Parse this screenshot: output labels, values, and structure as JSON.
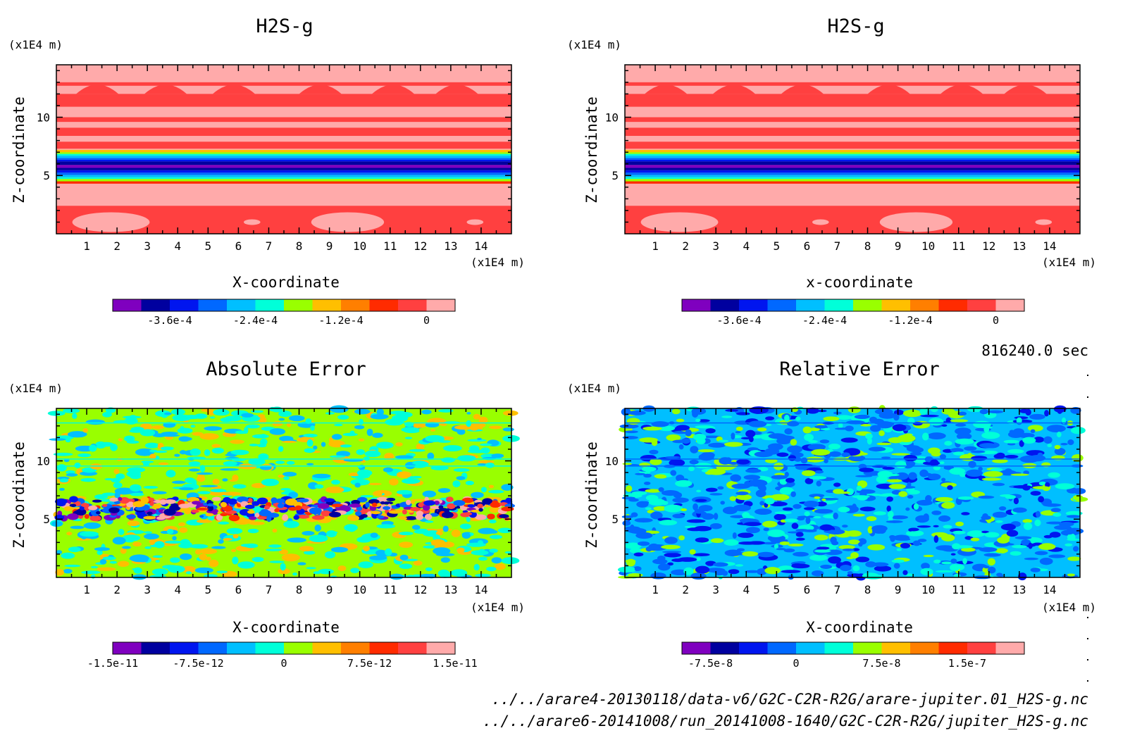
{
  "chart_data": [
    {
      "type": "heatmap",
      "title": "H2S-g",
      "xlabel": "X-coordinate",
      "ylabel": "Z-coordinate",
      "x_unit": "(x1E4 m)",
      "y_unit": "(x1E4 m)",
      "xlim": [
        0,
        15
      ],
      "ylim": [
        0,
        14.5
      ],
      "xticks": [
        "1",
        "2",
        "3",
        "4",
        "5",
        "6",
        "7",
        "8",
        "9",
        "10",
        "11",
        "12",
        "13",
        "14"
      ],
      "yticks": [
        "5",
        "10"
      ],
      "pattern": "stratified",
      "colorbar": {
        "colors": [
          "#7f00bf",
          "#00009f",
          "#0015ef",
          "#0068ff",
          "#00bfff",
          "#00ffd9",
          "#99ff00",
          "#ffbf00",
          "#ff7f00",
          "#ff2b00",
          "#ff4040",
          "#ffaaaa"
        ],
        "labels": [
          "-3.6e-4",
          "-2.4e-4",
          "-1.2e-4",
          "0"
        ],
        "range": [
          -0.00044,
          4e-05
        ]
      }
    },
    {
      "type": "heatmap",
      "title": "H2S-g",
      "xlabel": "x-coordinate",
      "ylabel": "Z-coordinate",
      "x_unit": "(x1E4 m)",
      "y_unit": "(x1E4 m)",
      "xlim": [
        0,
        15
      ],
      "ylim": [
        0,
        14.5
      ],
      "xticks": [
        "1",
        "2",
        "3",
        "4",
        "5",
        "6",
        "7",
        "8",
        "9",
        "10",
        "11",
        "12",
        "13",
        "14"
      ],
      "yticks": [
        "5",
        "10"
      ],
      "pattern": "stratified",
      "colorbar": {
        "colors": [
          "#7f00bf",
          "#00009f",
          "#0015ef",
          "#0068ff",
          "#00bfff",
          "#00ffd9",
          "#99ff00",
          "#ffbf00",
          "#ff7f00",
          "#ff2b00",
          "#ff4040",
          "#ffaaaa"
        ],
        "labels": [
          "-3.6e-4",
          "-2.4e-4",
          "-1.2e-4",
          "0"
        ],
        "range": [
          -0.00044,
          4e-05
        ]
      }
    },
    {
      "type": "heatmap",
      "title": "Absolute Error",
      "xlabel": "X-coordinate",
      "ylabel": "Z-coordinate",
      "x_unit": "(x1E4 m)",
      "y_unit": "(x1E4 m)",
      "xlim": [
        0,
        15
      ],
      "ylim": [
        0,
        14.5
      ],
      "xticks": [
        "1",
        "2",
        "3",
        "4",
        "5",
        "6",
        "7",
        "8",
        "9",
        "10",
        "11",
        "12",
        "13",
        "14"
      ],
      "yticks": [
        "5",
        "10"
      ],
      "pattern": "noise_abs",
      "colorbar": {
        "colors": [
          "#7f00bf",
          "#00009f",
          "#0015ef",
          "#0068ff",
          "#00bfff",
          "#00ffd9",
          "#99ff00",
          "#ffbf00",
          "#ff7f00",
          "#ff2b00",
          "#ff4040",
          "#ffaaaa"
        ],
        "labels": [
          "-1.5e-11",
          "-7.5e-12",
          "0",
          "7.5e-12",
          "1.5e-11"
        ],
        "range": [
          -1.5e-11,
          1.5e-11
        ]
      }
    },
    {
      "type": "heatmap",
      "title": "Relative Error",
      "xlabel": "X-coordinate",
      "ylabel": "Z-coordinate",
      "x_unit": "(x1E4 m)",
      "y_unit": "(x1E4 m)",
      "xlim": [
        0,
        15
      ],
      "ylim": [
        0,
        14.5
      ],
      "xticks": [
        "1",
        "2",
        "3",
        "4",
        "5",
        "6",
        "7",
        "8",
        "9",
        "10",
        "11",
        "12",
        "13",
        "14"
      ],
      "yticks": [
        "5",
        "10"
      ],
      "pattern": "noise_rel",
      "colorbar": {
        "colors": [
          "#7f00bf",
          "#00009f",
          "#0015ef",
          "#0068ff",
          "#00bfff",
          "#00ffd9",
          "#99ff00",
          "#ffbf00",
          "#ff7f00",
          "#ff2b00",
          "#ff4040",
          "#ffaaaa"
        ],
        "labels": [
          "-7.5e-8",
          "0",
          "7.5e-8",
          "1.5e-7"
        ],
        "range": [
          -1e-07,
          2e-07
        ]
      }
    }
  ],
  "time_label": "816240.0 sec",
  "file_paths": [
    "../../arare4-20130118/data-v6/G2C-C2R-R2G/arare-jupiter.01_H2S-g.nc",
    "../../arare6-20141008/run_20141008-1640/G2C-C2R-R2G/jupiter_H2S-g.nc"
  ]
}
